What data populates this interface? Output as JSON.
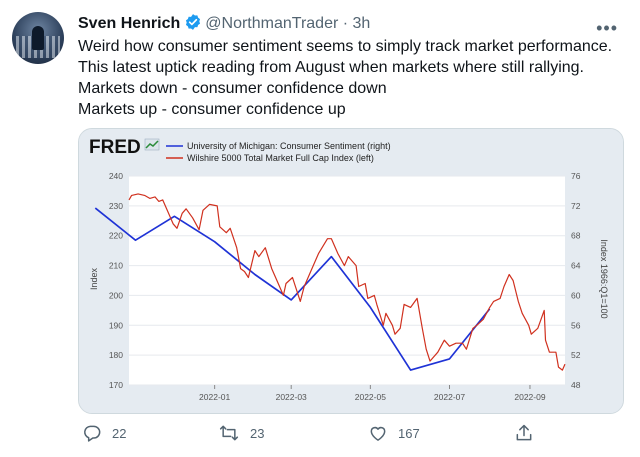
{
  "tweet": {
    "author_name": "Sven Henrich",
    "handle": "@NorthmanTrader",
    "separator": "·",
    "time": "3h",
    "lines": [
      "Weird how consumer sentiment seems to simply track market performance.",
      "This latest uptick reading from August when markets where still rallying.",
      "Markets down - consumer confidence down",
      "Markets up - consumer confidence up"
    ]
  },
  "actions": {
    "replies": "22",
    "retweets": "23",
    "likes": "167"
  },
  "colors": {
    "blue_series": "#1f33d6",
    "red_series": "#d0311f",
    "verified": "#1d9bf0"
  },
  "icons": [
    "verified-badge-icon",
    "more-options-icon",
    "reply-icon",
    "retweet-icon",
    "like-icon",
    "share-icon"
  ],
  "chart_data": {
    "type": "line",
    "logo": "FRED",
    "legend_position": "top",
    "grid": true,
    "x_ticks": [
      "2022-01",
      "2022-03",
      "2022-05",
      "2022-07",
      "2022-09"
    ],
    "x_range": [
      "2021-10-27",
      "2022-09-28"
    ],
    "y_left": {
      "label": "Index",
      "range": [
        170,
        240
      ],
      "ticks": [
        170,
        180,
        190,
        200,
        210,
        220,
        230,
        240
      ]
    },
    "y_right": {
      "label": "Index 1966:Q1=100",
      "range": [
        48,
        76
      ],
      "ticks": [
        48,
        52,
        56,
        60,
        64,
        68,
        72,
        76
      ]
    },
    "series": [
      {
        "name": "University of Michigan: Consumer Sentiment (right)",
        "axis": "right",
        "color": "#1f33d6",
        "points": [
          [
            "2021-10-01",
            71.7
          ],
          [
            "2021-11-01",
            67.4
          ],
          [
            "2021-12-01",
            70.6
          ],
          [
            "2022-01-01",
            67.2
          ],
          [
            "2022-02-01",
            62.8
          ],
          [
            "2022-03-01",
            59.4
          ],
          [
            "2022-04-01",
            65.2
          ],
          [
            "2022-05-01",
            58.4
          ],
          [
            "2022-06-01",
            50.0
          ],
          [
            "2022-07-01",
            51.5
          ],
          [
            "2022-08-01",
            58.2
          ]
        ]
      },
      {
        "name": "Wilshire 5000 Total Market Full Cap Index (left)",
        "axis": "left",
        "color": "#d0311f",
        "points": [
          [
            "2021-10-27",
            232
          ],
          [
            "2021-10-29",
            233.5
          ],
          [
            "2021-11-03",
            234
          ],
          [
            "2021-11-08",
            233.5
          ],
          [
            "2021-11-12",
            232.5
          ],
          [
            "2021-11-16",
            233
          ],
          [
            "2021-11-19",
            231.5
          ],
          [
            "2021-11-22",
            232
          ],
          [
            "2021-11-26",
            228
          ],
          [
            "2021-11-30",
            224
          ],
          [
            "2021-12-03",
            222.5
          ],
          [
            "2021-12-07",
            227.5
          ],
          [
            "2021-12-10",
            229
          ],
          [
            "2021-12-15",
            226
          ],
          [
            "2021-12-20",
            222
          ],
          [
            "2021-12-23",
            228.5
          ],
          [
            "2021-12-28",
            230.5
          ],
          [
            "2022-01-03",
            230
          ],
          [
            "2022-01-05",
            223
          ],
          [
            "2022-01-10",
            221
          ],
          [
            "2022-01-13",
            222.5
          ],
          [
            "2022-01-18",
            216
          ],
          [
            "2022-01-21",
            209
          ],
          [
            "2022-01-24",
            208
          ],
          [
            "2022-01-27",
            206
          ],
          [
            "2022-02-01",
            215
          ],
          [
            "2022-02-04",
            213
          ],
          [
            "2022-02-09",
            216
          ],
          [
            "2022-02-14",
            209
          ],
          [
            "2022-02-17",
            206
          ],
          [
            "2022-02-23",
            200
          ],
          [
            "2022-02-25",
            204
          ],
          [
            "2022-03-02",
            206
          ],
          [
            "2022-03-08",
            198
          ],
          [
            "2022-03-11",
            203
          ],
          [
            "2022-03-16",
            208
          ],
          [
            "2022-03-22",
            214
          ],
          [
            "2022-03-29",
            219
          ],
          [
            "2022-04-01",
            219
          ],
          [
            "2022-04-06",
            214
          ],
          [
            "2022-04-11",
            210
          ],
          [
            "2022-04-14",
            213
          ],
          [
            "2022-04-20",
            210
          ],
          [
            "2022-04-22",
            203
          ],
          [
            "2022-04-27",
            204
          ],
          [
            "2022-04-29",
            199
          ],
          [
            "2022-05-04",
            200
          ],
          [
            "2022-05-06",
            197
          ],
          [
            "2022-05-11",
            190
          ],
          [
            "2022-05-13",
            194
          ],
          [
            "2022-05-18",
            190
          ],
          [
            "2022-05-20",
            187
          ],
          [
            "2022-05-24",
            189
          ],
          [
            "2022-05-27",
            197
          ],
          [
            "2022-06-01",
            196
          ],
          [
            "2022-06-06",
            199
          ],
          [
            "2022-06-10",
            189
          ],
          [
            "2022-06-13",
            182
          ],
          [
            "2022-06-16",
            178
          ],
          [
            "2022-06-22",
            181
          ],
          [
            "2022-06-27",
            185
          ],
          [
            "2022-07-01",
            183
          ],
          [
            "2022-07-06",
            184
          ],
          [
            "2022-07-11",
            184
          ],
          [
            "2022-07-14",
            182
          ],
          [
            "2022-07-19",
            189
          ],
          [
            "2022-07-22",
            190
          ],
          [
            "2022-07-27",
            192
          ],
          [
            "2022-08-01",
            196
          ],
          [
            "2022-08-04",
            198
          ],
          [
            "2022-08-09",
            199
          ],
          [
            "2022-08-12",
            203
          ],
          [
            "2022-08-16",
            207
          ],
          [
            "2022-08-19",
            205
          ],
          [
            "2022-08-23",
            198
          ],
          [
            "2022-08-26",
            194
          ],
          [
            "2022-08-31",
            190
          ],
          [
            "2022-09-02",
            187
          ],
          [
            "2022-09-07",
            189
          ],
          [
            "2022-09-12",
            195
          ],
          [
            "2022-09-13",
            185
          ],
          [
            "2022-09-16",
            181
          ],
          [
            "2022-09-21",
            181
          ],
          [
            "2022-09-23",
            176
          ],
          [
            "2022-09-26",
            175
          ],
          [
            "2022-09-28",
            177
          ]
        ]
      }
    ]
  }
}
